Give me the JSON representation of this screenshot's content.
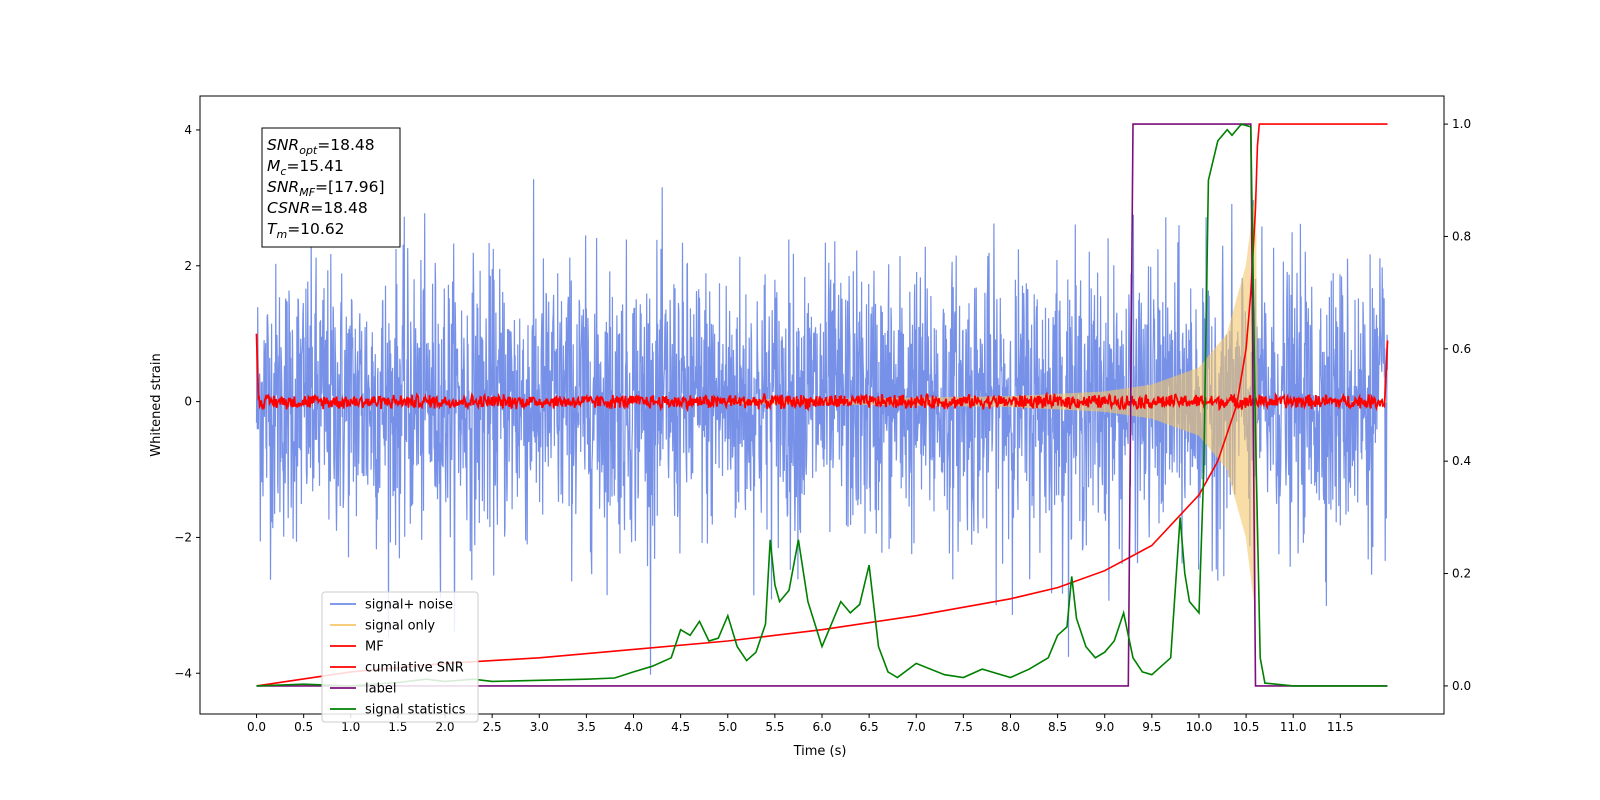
{
  "chart_data": {
    "type": "line",
    "xlabel": "Time (s)",
    "ylabel": "Whitened strain",
    "xlim": [
      -0.6,
      12.6
    ],
    "ylim": [
      -4.6,
      4.5
    ],
    "y2lim": [
      -0.05,
      1.05
    ],
    "xticks": [
      0.0,
      0.5,
      1.0,
      1.5,
      2.0,
      2.5,
      3.0,
      3.5,
      4.0,
      4.5,
      5.0,
      5.5,
      6.0,
      6.5,
      7.0,
      7.5,
      8.0,
      8.5,
      9.0,
      9.5,
      10.0,
      10.5,
      11.0,
      11.5
    ],
    "xtick_labels": [
      "0.0",
      "0.5",
      "1.0",
      "1.5",
      "2.0",
      "2.5",
      "3.0",
      "3.5",
      "4.0",
      "4.5",
      "5.0",
      "5.5",
      "6.0",
      "6.5",
      "7.0",
      "7.5",
      "8.0",
      "8.5",
      "9.0",
      "9.5",
      "10.0",
      "10.5",
      "11.0",
      "11.5"
    ],
    "yticks": [
      -4,
      -2,
      0,
      2,
      4
    ],
    "ytick_labels": [
      "−4",
      "−2",
      "0",
      "2",
      "4"
    ],
    "y2ticks": [
      0.0,
      0.2,
      0.4,
      0.6,
      0.8,
      1.0
    ],
    "y2tick_labels": [
      "0.0",
      "0.2",
      "0.4",
      "0.6",
      "0.8",
      "1.0"
    ],
    "grid": false,
    "legend_position": "lower-left",
    "annotation_box": {
      "position": "top-left",
      "lines": [
        {
          "main": "SNR",
          "sub": "opt",
          "rest": "=18.48"
        },
        {
          "main": "M",
          "sub": "c",
          "rest": "=15.41"
        },
        {
          "main": "SNR",
          "sub": "MF",
          "rest": "=[17.96]"
        },
        {
          "main": "CSNR",
          "sub": "",
          "rest": "=18.48"
        },
        {
          "main": "T",
          "sub": "m",
          "rest": "=10.62"
        }
      ]
    },
    "series": [
      {
        "name": "signal+ noise",
        "axis": "left",
        "color": "#6f8be6",
        "description_values": {
          "x_range": [
            0.0,
            12.0
          ],
          "noise_envelope": [
            -2.6,
            2.6
          ],
          "peak_max": 3.55,
          "peak_min": -4.15
        }
      },
      {
        "name": "signal only",
        "axis": "left",
        "color": "#f5c76b",
        "description_values": {
          "x_range": [
            0.0,
            12.0
          ],
          "amplitude_at_t": [
            [
              0.0,
              0.02
            ],
            [
              6.0,
              0.04
            ],
            [
              8.0,
              0.08
            ],
            [
              9.0,
              0.15
            ],
            [
              9.5,
              0.25
            ],
            [
              10.0,
              0.5
            ],
            [
              10.3,
              1.0
            ],
            [
              10.5,
              2.0
            ],
            [
              10.6,
              3.1
            ],
            [
              10.62,
              0.0
            ]
          ]
        }
      },
      {
        "name": "MF",
        "axis": "left",
        "color": "#ff0000",
        "description_values": {
          "x_range": [
            0.0,
            12.0
          ],
          "start_value": 1.0,
          "baseline": 0.0,
          "spread": 0.12,
          "end_value": 0.9
        }
      },
      {
        "name": "cumilative SNR",
        "axis": "right",
        "color": "#ff0000",
        "x": [
          0.0,
          1.0,
          2.0,
          3.0,
          4.0,
          5.0,
          6.0,
          7.0,
          8.0,
          8.5,
          9.0,
          9.5,
          10.0,
          10.2,
          10.4,
          10.5,
          10.55,
          10.6,
          10.62,
          10.64,
          12.0
        ],
        "y": [
          0.0,
          0.025,
          0.04,
          0.05,
          0.065,
          0.08,
          0.1,
          0.125,
          0.155,
          0.175,
          0.205,
          0.25,
          0.34,
          0.4,
          0.5,
          0.6,
          0.7,
          0.85,
          0.96,
          1.0,
          1.0
        ]
      },
      {
        "name": "label",
        "axis": "right",
        "color": "#7b0f7b",
        "x": [
          0.0,
          9.25,
          9.3,
          10.55,
          10.6,
          12.0
        ],
        "y": [
          0.0,
          0.0,
          1.0,
          1.0,
          0.0,
          0.0
        ]
      },
      {
        "name": "signal statistics",
        "axis": "right",
        "color": "#008000",
        "x": [
          0.0,
          0.5,
          1.0,
          1.5,
          1.8,
          2.0,
          2.3,
          2.5,
          3.0,
          3.5,
          3.8,
          4.0,
          4.2,
          4.4,
          4.5,
          4.6,
          4.7,
          4.8,
          4.9,
          5.0,
          5.1,
          5.2,
          5.3,
          5.4,
          5.45,
          5.5,
          5.55,
          5.65,
          5.75,
          5.85,
          6.0,
          6.1,
          6.2,
          6.3,
          6.4,
          6.5,
          6.6,
          6.7,
          6.8,
          7.0,
          7.3,
          7.5,
          7.7,
          8.0,
          8.2,
          8.4,
          8.5,
          8.6,
          8.65,
          8.7,
          8.8,
          8.9,
          9.0,
          9.1,
          9.2,
          9.3,
          9.4,
          9.5,
          9.7,
          9.8,
          9.85,
          9.9,
          10.0,
          10.05,
          10.1,
          10.2,
          10.3,
          10.35,
          10.45,
          10.55,
          10.6,
          10.65,
          10.7,
          11.0,
          11.5,
          12.0
        ],
        "y": [
          0.0,
          0.003,
          0.0,
          0.006,
          0.012,
          0.008,
          0.012,
          0.008,
          0.01,
          0.012,
          0.014,
          0.025,
          0.035,
          0.05,
          0.1,
          0.09,
          0.115,
          0.08,
          0.085,
          0.125,
          0.07,
          0.045,
          0.06,
          0.11,
          0.26,
          0.18,
          0.15,
          0.17,
          0.26,
          0.15,
          0.07,
          0.11,
          0.15,
          0.13,
          0.145,
          0.215,
          0.07,
          0.025,
          0.015,
          0.04,
          0.02,
          0.015,
          0.03,
          0.015,
          0.03,
          0.05,
          0.09,
          0.105,
          0.195,
          0.12,
          0.07,
          0.05,
          0.06,
          0.08,
          0.13,
          0.05,
          0.025,
          0.02,
          0.05,
          0.3,
          0.2,
          0.15,
          0.13,
          0.38,
          0.9,
          0.97,
          0.99,
          0.98,
          1.0,
          0.995,
          0.45,
          0.05,
          0.005,
          0.0,
          0.0,
          0.0
        ]
      }
    ]
  }
}
